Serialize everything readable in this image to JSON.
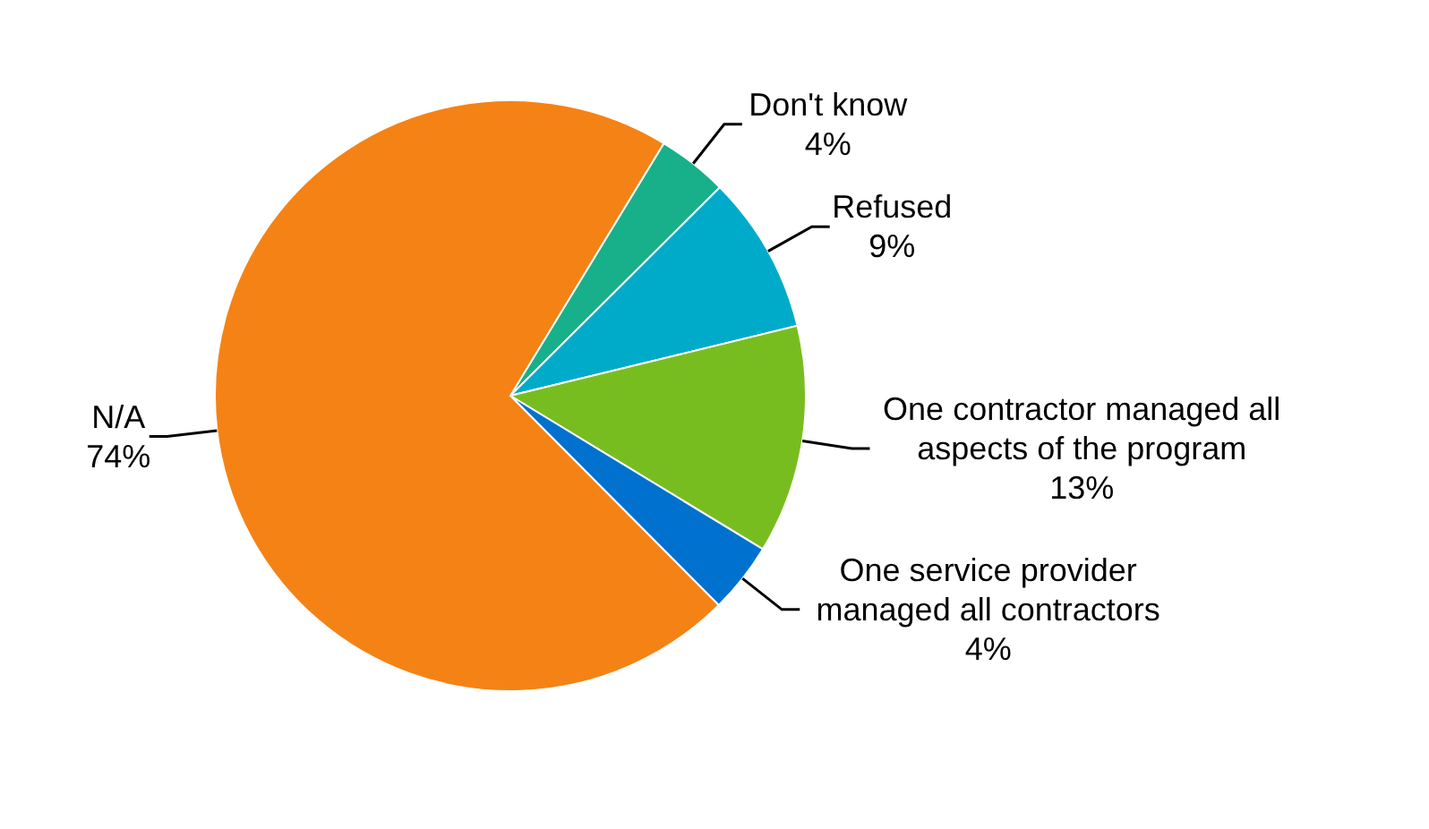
{
  "chart_data": {
    "type": "pie",
    "categories": [
      "Don't know",
      "Refused",
      "One contractor managed all aspects of the program",
      "One service provider managed all contractors",
      "N/A"
    ],
    "values": [
      4,
      9,
      13,
      4,
      74
    ],
    "value_labels": [
      "4%",
      "9%",
      "13%",
      "4%",
      "74%"
    ],
    "colors": [
      "#17b08a",
      "#00abc9",
      "#78bd1f",
      "#0071ce",
      "#f58215"
    ],
    "legend": false
  }
}
